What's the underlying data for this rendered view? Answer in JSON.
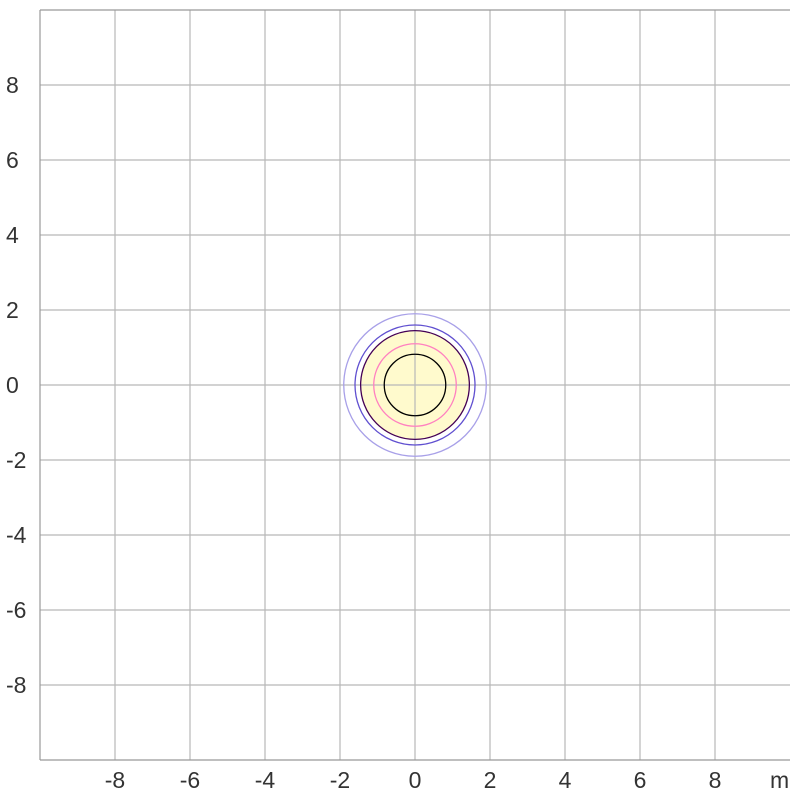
{
  "chart_data": {
    "type": "contour",
    "xlim": [
      -10,
      10
    ],
    "ylim": [
      -10,
      10
    ],
    "x_ticks": [
      -8,
      -6,
      -4,
      -2,
      0,
      2,
      4,
      6,
      8
    ],
    "y_ticks": [
      8,
      6,
      4,
      2,
      0,
      -2,
      -4,
      -6,
      -8
    ],
    "x_tick_labels": [
      "-8",
      "-6",
      "-4",
      "-2",
      "0",
      "2",
      "4",
      "6",
      "8"
    ],
    "y_tick_labels": [
      "8",
      "6",
      "4",
      "2",
      "0",
      "-2",
      "-4",
      "-6",
      "-8"
    ],
    "x_unit": "m",
    "corner_text": "",
    "grid": true,
    "grid_step": 2,
    "center": [
      0,
      0
    ],
    "filled_region": {
      "radius": 1.45,
      "color": "#fffacd"
    },
    "contours": [
      {
        "radius": 0.82,
        "color": "#000000"
      },
      {
        "radius": 1.1,
        "color": "#ff80c0"
      },
      {
        "radius": 1.45,
        "color": "#440055"
      },
      {
        "radius": 1.6,
        "color": "#6050d0"
      },
      {
        "radius": 1.9,
        "color": "#a8a0e8"
      }
    ]
  }
}
